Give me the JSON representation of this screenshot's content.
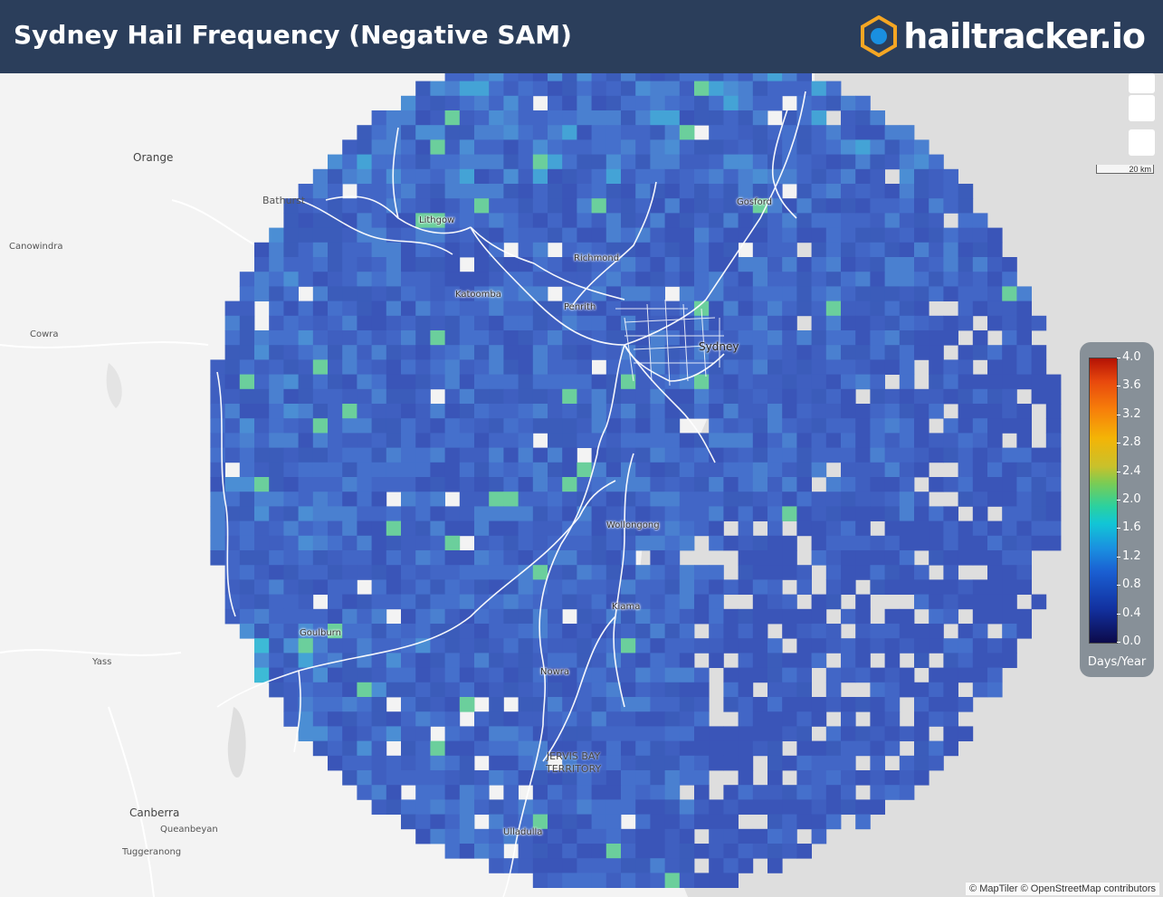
{
  "header": {
    "title": "Sydney Hail Frequency (Negative SAM)",
    "brand": "hailtracker.io"
  },
  "map": {
    "scale_label": "20 km",
    "attribution": "© MapTiler © OpenStreetMap contributors",
    "places": {
      "orange": "Orange",
      "bathurst": "Bathurst",
      "canowindra": "Canowindra",
      "cowra": "Cowra",
      "yass": "Yass",
      "canberra": "Canberra",
      "queanbeyan": "Queanbeyan",
      "tuggeranong": "Tuggeranong",
      "lithgow": "Lithgow",
      "richmond": "Richmond",
      "katoomba": "Katoomba",
      "penrith": "Penrith",
      "sydney": "Sydney",
      "gosford": "Gosford",
      "wollongong": "Wollongong",
      "kiama": "Kiama",
      "goulburn": "Goulburn",
      "nowra": "Nowra",
      "jervis_bay": "JERVIS BAY",
      "territory": "TERRITORY",
      "ulladulla": "Ulladulla"
    }
  },
  "legend": {
    "unit": "Days/Year",
    "labels": [
      "4.0",
      "3.6",
      "3.2",
      "2.8",
      "2.4",
      "2.0",
      "1.6",
      "1.2",
      "0.8",
      "0.4",
      "0.0"
    ],
    "colors": {
      "min": "#0c0a4a",
      "low": "#1a5fd2",
      "mid": "#12c6d6",
      "high": "#f4b406",
      "max": "#b41205"
    }
  },
  "colors": {
    "header_bg": "#2b3e5b",
    "brand_accent": "#f5a623",
    "grid_base": "#3f5fc0"
  }
}
